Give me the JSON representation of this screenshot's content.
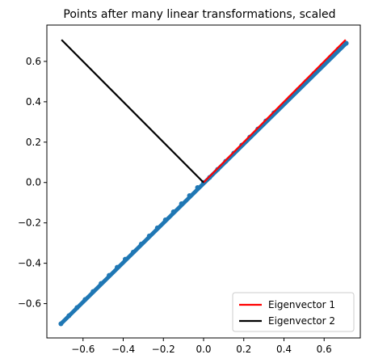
{
  "chart_data": {
    "type": "scatter",
    "title": "Points after many linear transformations, scaled",
    "xlabel": "",
    "ylabel": "",
    "xlim": [
      -0.78,
      0.78
    ],
    "ylim": [
      -0.77,
      0.78
    ],
    "xticks": [
      -0.6,
      -0.4,
      -0.2,
      0.0,
      0.2,
      0.4,
      0.6
    ],
    "xtick_labels": [
      "−0.6",
      "−0.4",
      "−0.2",
      "0.0",
      "0.2",
      "0.4",
      "0.6"
    ],
    "yticks": [
      -0.6,
      -0.4,
      -0.2,
      0.0,
      0.2,
      0.4,
      0.6
    ],
    "ytick_labels": [
      "−0.6",
      "−0.4",
      "−0.2",
      "0.0",
      "0.2",
      "0.4",
      "0.6"
    ],
    "grid": false,
    "legend_position": "lower-right",
    "scatter": {
      "color": "#1f77b4",
      "x": [
        -0.71,
        -0.67,
        -0.63,
        -0.59,
        -0.55,
        -0.51,
        -0.47,
        -0.43,
        -0.39,
        -0.35,
        -0.31,
        -0.27,
        -0.23,
        -0.19,
        -0.15,
        -0.11,
        -0.07,
        -0.03,
        0.0,
        0.03,
        0.07,
        0.11,
        0.15,
        0.19,
        0.23,
        0.27,
        0.31,
        0.35,
        0.39,
        0.43,
        0.47,
        0.51,
        0.55,
        0.59,
        0.63,
        0.67,
        0.71
      ],
      "y": [
        -0.7,
        -0.66,
        -0.62,
        -0.58,
        -0.54,
        -0.5,
        -0.46,
        -0.42,
        -0.38,
        -0.345,
        -0.305,
        -0.265,
        -0.225,
        -0.185,
        -0.145,
        -0.105,
        -0.065,
        -0.025,
        0.0,
        0.025,
        0.065,
        0.105,
        0.145,
        0.185,
        0.225,
        0.265,
        0.305,
        0.345,
        0.38,
        0.42,
        0.46,
        0.5,
        0.54,
        0.58,
        0.62,
        0.66,
        0.69
      ]
    },
    "series": [
      {
        "name": "Eigenvector 1",
        "color": "#ff0000",
        "x": [
          0.0,
          0.707
        ],
        "y": [
          0.0,
          0.707
        ]
      },
      {
        "name": "Eigenvector 2",
        "color": "#000000",
        "x": [
          0.0,
          -0.707
        ],
        "y": [
          0.0,
          0.707
        ]
      }
    ]
  }
}
